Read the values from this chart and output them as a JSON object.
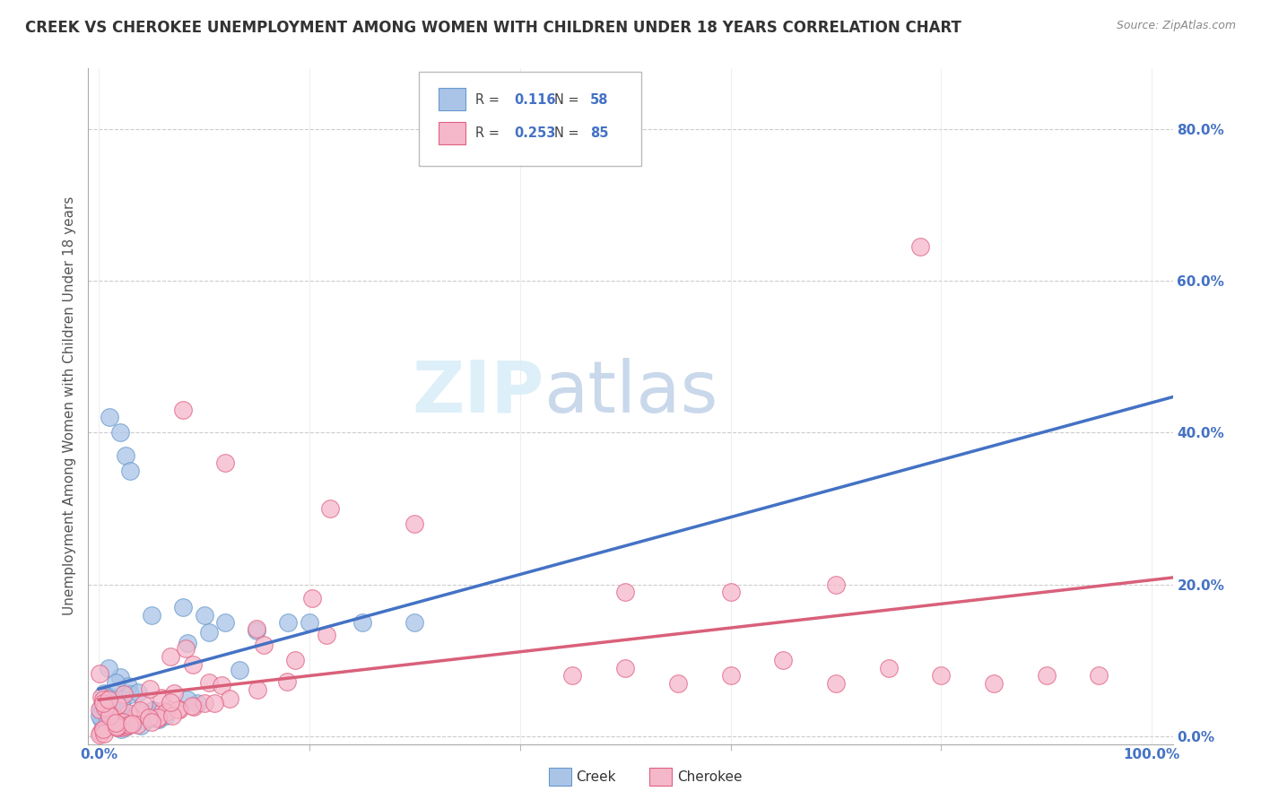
{
  "title": "CREEK VS CHEROKEE UNEMPLOYMENT AMONG WOMEN WITH CHILDREN UNDER 18 YEARS CORRELATION CHART",
  "source": "Source: ZipAtlas.com",
  "ylabel": "Unemployment Among Women with Children Under 18 years",
  "creek_R": 0.116,
  "creek_N": 58,
  "cherokee_R": 0.253,
  "cherokee_N": 85,
  "creek_color": "#aac4e8",
  "cherokee_color": "#f5b8cb",
  "creek_edge_color": "#6699cc",
  "cherokee_edge_color": "#e06080",
  "creek_line_color": "#4472c4",
  "cherokee_line_color": "#d9607a",
  "background_color": "#ffffff",
  "grid_color": "#cccccc",
  "xlim": [
    -0.01,
    1.02
  ],
  "ylim": [
    -0.01,
    0.88
  ],
  "x_left_label": "0.0%",
  "x_right_label": "100.0%",
  "ytick_vals": [
    0.0,
    0.2,
    0.4,
    0.6,
    0.8
  ],
  "ytick_labels": [
    "0.0%",
    "20.0%",
    "40.0%",
    "60.0%",
    "80.0%"
  ],
  "watermark_zip": "ZIP",
  "watermark_atlas": "atlas",
  "title_fontsize": 12,
  "label_fontsize": 11,
  "tick_fontsize": 11
}
